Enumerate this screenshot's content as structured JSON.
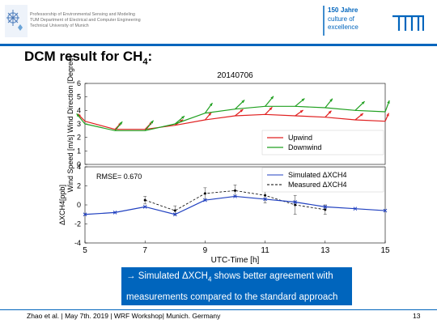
{
  "header": {
    "lines": [
      "Professorship of Environmental Sensing and Modeling",
      "TUM Department of Electrical and Computer Engineering",
      "Technical University of Munich"
    ],
    "anniversary": {
      "number": "150",
      "word": "Jahre",
      "line1": "culture of",
      "line2": "excellence"
    },
    "colors": {
      "brand": "#0065bd",
      "grey": "#6a6a6a"
    }
  },
  "title": {
    "text": "DCM result for CH",
    "sub": "4",
    "suffix": ":"
  },
  "chart_data": [
    {
      "type": "line",
      "title": "20140706",
      "ylabel": "Wind Speed [m/s] Wind Direction [Degree]",
      "ylim": [
        0,
        6
      ],
      "yticks": [
        "0",
        "1",
        "2",
        "3",
        "4",
        "5",
        "6"
      ],
      "x": [
        5,
        6,
        7,
        8,
        9,
        10,
        11,
        12,
        13,
        14,
        15
      ],
      "series": [
        {
          "name": "Upwind",
          "color": "#e02020",
          "values": [
            3.2,
            2.6,
            2.6,
            2.9,
            3.3,
            3.6,
            3.7,
            3.6,
            3.5,
            3.3,
            3.2
          ]
        },
        {
          "name": "Downwind",
          "color": "#20a020",
          "values": [
            3.0,
            2.5,
            2.5,
            3.0,
            3.8,
            4.1,
            4.3,
            4.3,
            4.2,
            4.0,
            3.9
          ]
        }
      ],
      "legend": "bottom-right",
      "grid": false
    },
    {
      "type": "line",
      "xlabel": "UTC-Time [h]",
      "ylabel": "ΔXCH4[ppb]",
      "ylim": [
        -4,
        4
      ],
      "yticks": [
        "-4",
        "-2",
        "0",
        "2",
        "4"
      ],
      "xlim": [
        5,
        15
      ],
      "xticks": [
        "5",
        "7",
        "9",
        "11",
        "13",
        "15"
      ],
      "annotation": "RMSE= 0.670",
      "series": [
        {
          "name": "Simulated ΔXCH4",
          "color": "#2040c0",
          "style": "solid",
          "x": [
            5,
            6,
            7,
            8,
            9,
            10,
            11,
            12,
            13,
            14,
            15
          ],
          "values": [
            -1.0,
            -0.8,
            -0.2,
            -1.0,
            0.5,
            0.9,
            0.6,
            0.3,
            -0.2,
            -0.4,
            -0.6
          ]
        },
        {
          "name": "Measured ΔXCH4",
          "color": "#000000",
          "style": "dashed",
          "x": [
            7,
            8,
            9,
            10,
            11,
            12,
            13
          ],
          "values": [
            0.5,
            -0.6,
            1.2,
            1.5,
            1.0,
            0.0,
            -0.5
          ],
          "error": [
            0.4,
            0.5,
            0.6,
            0.6,
            0.8,
            1.0,
            0.5
          ]
        }
      ],
      "legend": "top-right",
      "grid": false
    }
  ],
  "callout": {
    "line1_a": "→ Simulated ΔXCH",
    "line1_sub": "4",
    "line1_b": " shows better agreement with",
    "line2": "measurements compared to the standard approach"
  },
  "footer": {
    "text": "Zhao et al. | May 7th. 2019 | WRF Workshop| Munich. Germany",
    "page": "13"
  }
}
